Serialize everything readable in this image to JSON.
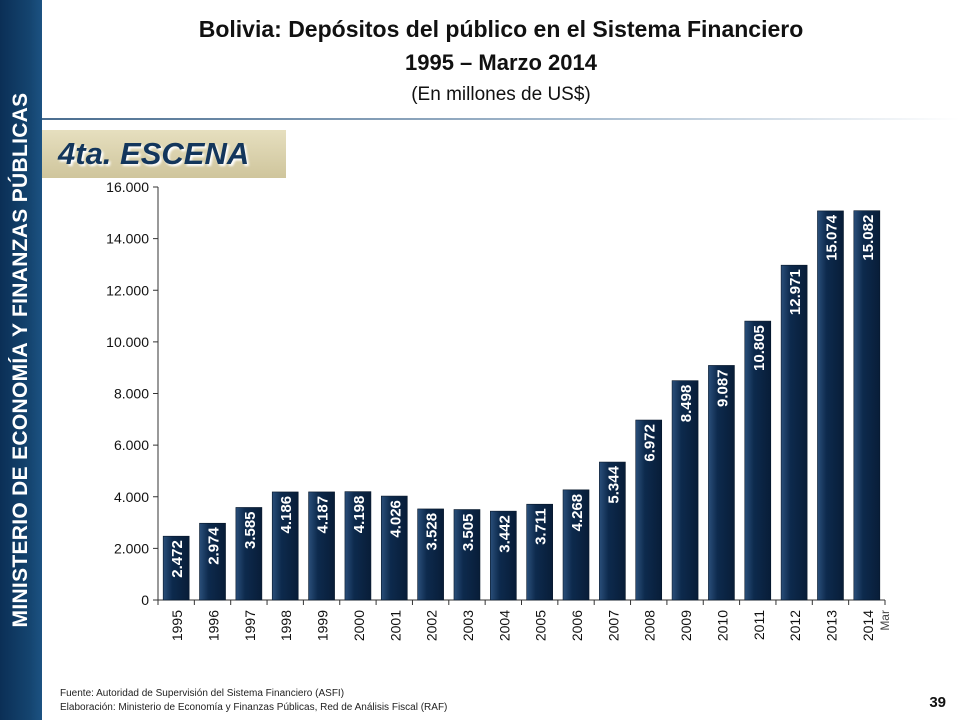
{
  "sidebar": {
    "text": "MINISTERIO DE ECONOMÍA Y FINANZAS PÚBLICAS"
  },
  "header": {
    "title": "Bolivia: Depósitos del público en el Sistema Financiero",
    "subtitle": "1995 – Marzo 2014",
    "units": "(En millones de US$)"
  },
  "scene_label": "4ta. ESCENA",
  "footer": {
    "source": "Fuente: Autoridad de Supervisión del Sistema Financiero (ASFI)",
    "elaboration": "Elaboración: Ministerio de Economía y Finanzas Públicas, Red de Análisis Fiscal (RAF)",
    "page_number": "39"
  },
  "colors": {
    "bar": "#0d2a4d",
    "sidebar": "#14446f",
    "banner": "#d9d0aa"
  },
  "chart_data": {
    "type": "bar",
    "categories": [
      "1995",
      "1996",
      "1997",
      "1998",
      "1999",
      "2000",
      "2001",
      "2002",
      "2003",
      "2004",
      "2005",
      "2006",
      "2007",
      "2008",
      "2009",
      "2010",
      "2011",
      "2012",
      "2013",
      "2014"
    ],
    "values": [
      2472,
      2974,
      3585,
      4186,
      4187,
      4198,
      4026,
      3528,
      3505,
      3442,
      3711,
      4268,
      5344,
      6972,
      8498,
      9087,
      10805,
      12971,
      15074,
      15082
    ],
    "value_labels": [
      "2.472",
      "2.974",
      "3.585",
      "4.186",
      "4.187",
      "4.198",
      "4.026",
      "3.528",
      "3.505",
      "3.442",
      "3.711",
      "4.268",
      "5.344",
      "6.972",
      "8.498",
      "9.087",
      "10.805",
      "12.971",
      "15.074",
      "15.082"
    ],
    "category_note": "Mar",
    "y_ticks": [
      0,
      2000,
      4000,
      6000,
      8000,
      10000,
      12000,
      14000,
      16000
    ],
    "y_tick_labels": [
      "0",
      "2.000",
      "4.000",
      "6.000",
      "8.000",
      "10.000",
      "12.000",
      "14.000",
      "16.000"
    ],
    "ylim": [
      0,
      16000
    ],
    "grid": false,
    "title": "",
    "xlabel": "",
    "ylabel": ""
  }
}
